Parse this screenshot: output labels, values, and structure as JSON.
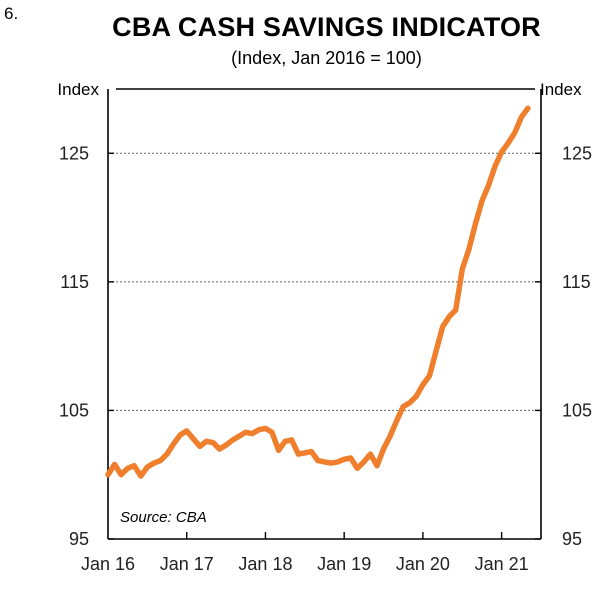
{
  "figure_number": "6.",
  "chart_data": {
    "type": "line",
    "title": "CBA CASH SAVINGS INDICATOR",
    "subtitle": "(Index, Jan 2016 = 100)",
    "ylabel_left": "Index",
    "ylabel_right": "Index",
    "source": "Source: CBA",
    "ylim": [
      95,
      130
    ],
    "yticks": [
      95,
      105,
      115,
      125
    ],
    "ytick_labels": [
      "95",
      "105",
      "115",
      "125"
    ],
    "xlim": [
      "2016-01",
      "2021-07"
    ],
    "xticks": [
      "2016-01",
      "2017-01",
      "2018-01",
      "2019-01",
      "2020-01",
      "2021-01"
    ],
    "xtick_labels": [
      "Jan 16",
      "Jan 17",
      "Jan 18",
      "Jan 19",
      "Jan 20",
      "Jan 21"
    ],
    "grid": "horizontal dotted",
    "line_color": "#f07f2d",
    "series": [
      {
        "x": [
          "2016-01",
          "2016-02",
          "2016-03",
          "2016-04",
          "2016-05",
          "2016-06",
          "2016-07",
          "2016-08",
          "2016-09",
          "2016-10",
          "2016-11",
          "2016-12",
          "2017-01",
          "2017-02",
          "2017-03",
          "2017-04",
          "2017-05",
          "2017-06",
          "2017-07",
          "2017-08",
          "2017-09",
          "2017-10",
          "2017-11",
          "2017-12",
          "2018-01",
          "2018-02",
          "2018-03",
          "2018-04",
          "2018-05",
          "2018-06",
          "2018-07",
          "2018-08",
          "2018-09",
          "2018-10",
          "2018-11",
          "2018-12",
          "2019-01",
          "2019-02",
          "2019-03",
          "2019-04",
          "2019-05",
          "2019-06",
          "2019-07",
          "2019-08",
          "2019-09",
          "2019-10",
          "2019-11",
          "2019-12",
          "2020-01",
          "2020-02",
          "2020-03",
          "2020-04",
          "2020-05",
          "2020-06",
          "2020-07",
          "2020-08",
          "2020-09",
          "2020-10",
          "2020-11",
          "2020-12",
          "2021-01",
          "2021-02",
          "2021-03",
          "2021-04",
          "2021-05"
        ],
        "values": [
          100.0,
          100.8,
          100.0,
          100.5,
          100.7,
          99.9,
          100.6,
          100.9,
          101.1,
          101.6,
          102.4,
          103.1,
          103.4,
          102.8,
          102.2,
          102.6,
          102.5,
          102.0,
          102.3,
          102.7,
          103.0,
          103.3,
          103.2,
          103.5,
          103.6,
          103.3,
          101.9,
          102.6,
          102.7,
          101.6,
          101.7,
          101.8,
          101.1,
          101.0,
          100.9,
          101.0,
          101.2,
          101.3,
          100.5,
          101.0,
          101.6,
          100.7,
          102.0,
          103.0,
          104.2,
          105.3,
          105.6,
          106.1,
          107.0,
          107.7,
          109.6,
          111.5,
          112.3,
          112.8,
          116.0,
          117.5,
          119.5,
          121.3,
          122.5,
          124.0,
          125.1,
          125.8,
          126.6,
          127.8,
          128.5
        ]
      }
    ]
  }
}
